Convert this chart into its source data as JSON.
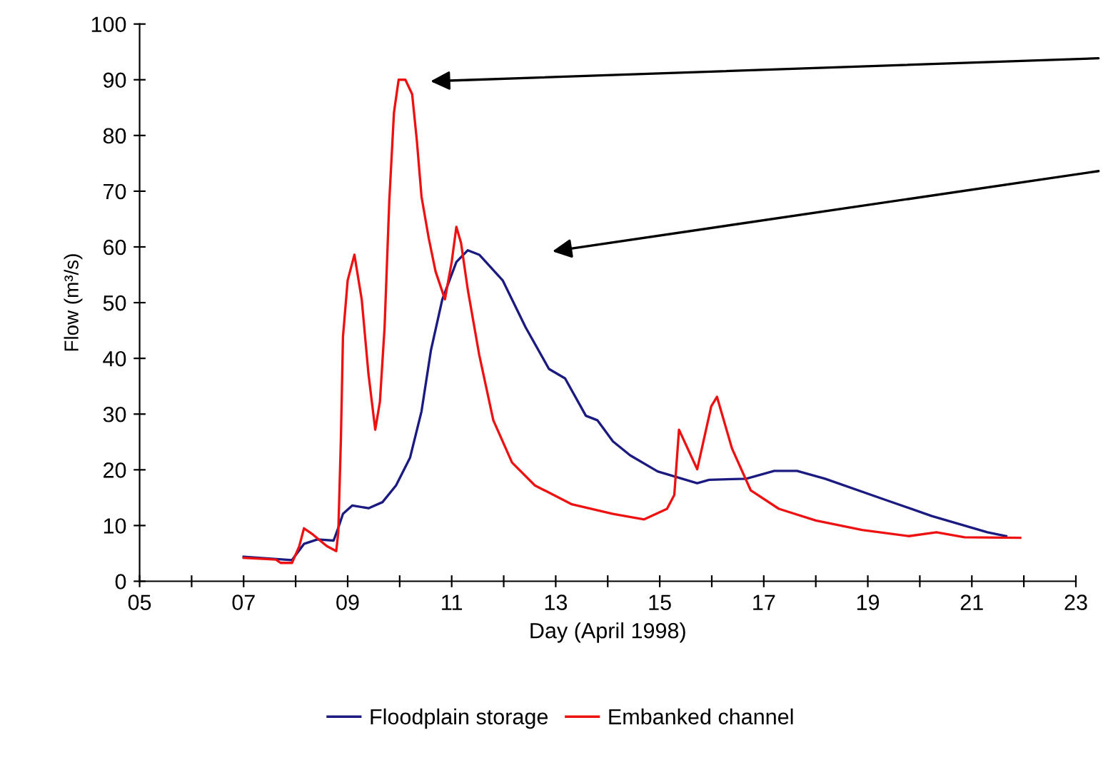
{
  "chart_data": {
    "type": "line",
    "xlabel": "Day (April 1998)",
    "ylabel": "Flow (m³/s)",
    "xlim": [
      5,
      23
    ],
    "xticks": [
      {
        "value": 5,
        "label": "05"
      },
      {
        "value": 6,
        "label": null
      },
      {
        "value": 7,
        "label": "07"
      },
      {
        "value": 8,
        "label": null
      },
      {
        "value": 9,
        "label": "09"
      },
      {
        "value": 10,
        "label": null
      },
      {
        "value": 11,
        "label": "11"
      },
      {
        "value": 12,
        "label": null
      },
      {
        "value": 13,
        "label": "13"
      },
      {
        "value": 14,
        "label": null
      },
      {
        "value": 15,
        "label": "15"
      },
      {
        "value": 16,
        "label": null
      },
      {
        "value": 17,
        "label": "17"
      },
      {
        "value": 18,
        "label": null
      },
      {
        "value": 19,
        "label": "19"
      },
      {
        "value": 20,
        "label": null
      },
      {
        "value": 21,
        "label": "21"
      },
      {
        "value": 22,
        "label": null
      },
      {
        "value": 23,
        "label": "23"
      }
    ],
    "ylim": [
      0,
      100
    ],
    "yticks": [
      0,
      10,
      20,
      30,
      40,
      50,
      60,
      70,
      80,
      90,
      100
    ],
    "grid": false,
    "legend": "bottom",
    "marker": "none",
    "line_style": "solid",
    "series": [
      {
        "name": "Floodplain storage",
        "color": "#1a1a80",
        "x": [
          7.0,
          7.93,
          8.16,
          8.42,
          8.73,
          8.82,
          8.91,
          9.09,
          9.4,
          9.67,
          9.93,
          10.2,
          10.42,
          10.6,
          10.82,
          11.09,
          11.31,
          11.53,
          11.98,
          12.42,
          12.87,
          13.18,
          13.58,
          13.8,
          14.1,
          14.43,
          14.96,
          15.72,
          15.95,
          16.66,
          17.2,
          17.64,
          18.18,
          19.34,
          20.23,
          21.3,
          21.66
        ],
        "values": [
          4.4,
          3.8,
          6.7,
          7.5,
          7.3,
          9.6,
          12.1,
          13.6,
          13.1,
          14.2,
          17.2,
          22.2,
          30.5,
          41.4,
          50.6,
          57.3,
          59.4,
          58.6,
          54,
          45.6,
          38.1,
          36.4,
          29.7,
          28.9,
          25.1,
          22.6,
          19.7,
          17.6,
          18.2,
          18.4,
          19.8,
          19.8,
          18.4,
          14.6,
          11.7,
          8.8,
          8.1
        ]
      },
      {
        "name": "Embanked channel",
        "color": "#ee1111",
        "x": [
          7.0,
          7.62,
          7.71,
          7.93,
          8.07,
          8.16,
          8.33,
          8.6,
          8.78,
          8.82,
          8.87,
          8.91,
          9.0,
          9.13,
          9.27,
          9.4,
          9.53,
          9.62,
          9.71,
          9.8,
          9.89,
          9.98,
          10.11,
          10.24,
          10.33,
          10.42,
          10.56,
          10.69,
          10.87,
          11.0,
          11.09,
          11.18,
          11.31,
          11.53,
          11.8,
          12.16,
          12.6,
          13.31,
          14.1,
          14.7,
          15.14,
          15.28,
          15.37,
          15.72,
          15.99,
          16.1,
          16.39,
          16.75,
          17.29,
          18.0,
          18.89,
          19.79,
          20.32,
          20.86,
          21.93
        ],
        "values": [
          4.2,
          3.9,
          3.3,
          3.3,
          6.3,
          9.5,
          8.4,
          6.3,
          5.4,
          8.8,
          25.5,
          43.9,
          54,
          58.6,
          50.6,
          37.2,
          27.2,
          32.2,
          45.6,
          68.2,
          84.1,
          90,
          90,
          87.4,
          79.1,
          69,
          61.5,
          55.6,
          50.6,
          57.3,
          63.6,
          60.7,
          52.3,
          40.6,
          28.9,
          21.3,
          17.2,
          13.8,
          12.1,
          11.1,
          13,
          15.5,
          27.2,
          20.1,
          31.4,
          33.1,
          23.8,
          16.3,
          13,
          10.9,
          9.2,
          8.1,
          8.8,
          7.9,
          7.8
        ]
      }
    ]
  }
}
